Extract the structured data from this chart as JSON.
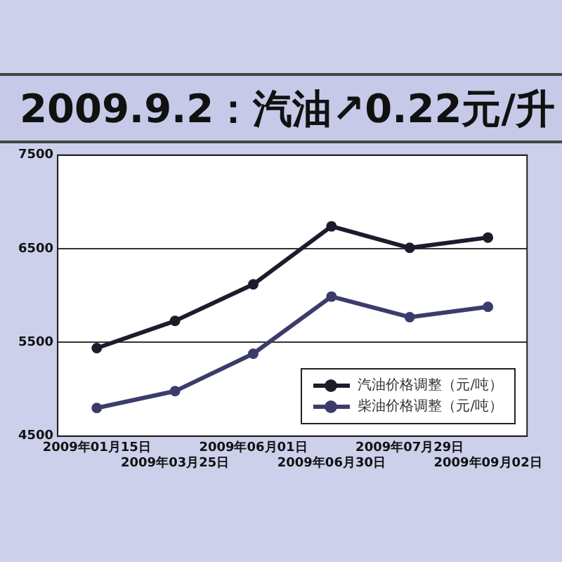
{
  "chart_data": {
    "type": "line",
    "title": "2009.9.2：汽油↗0.22元/升",
    "categories": [
      "2009年01月15日",
      "2009年03月25日",
      "2009年06月01日",
      "2009年06月30日",
      "2009年07月29日",
      "2009年09月02日"
    ],
    "series": [
      {
        "name": "汽油价格调整（元/吨）",
        "color": "#1c1c2c",
        "values": [
          5440,
          5730,
          6120,
          6740,
          6510,
          6620
        ]
      },
      {
        "name": "柴油价格调整（元/吨）",
        "color": "#3c3c6c",
        "values": [
          4800,
          4980,
          5380,
          5990,
          5770,
          5880
        ]
      }
    ],
    "ylim": [
      4500,
      7500
    ],
    "yticks": [
      4500,
      5500,
      6500,
      7500
    ],
    "grid": "y",
    "legend": "bottom right",
    "marker": "circle",
    "line_style": "solid"
  }
}
